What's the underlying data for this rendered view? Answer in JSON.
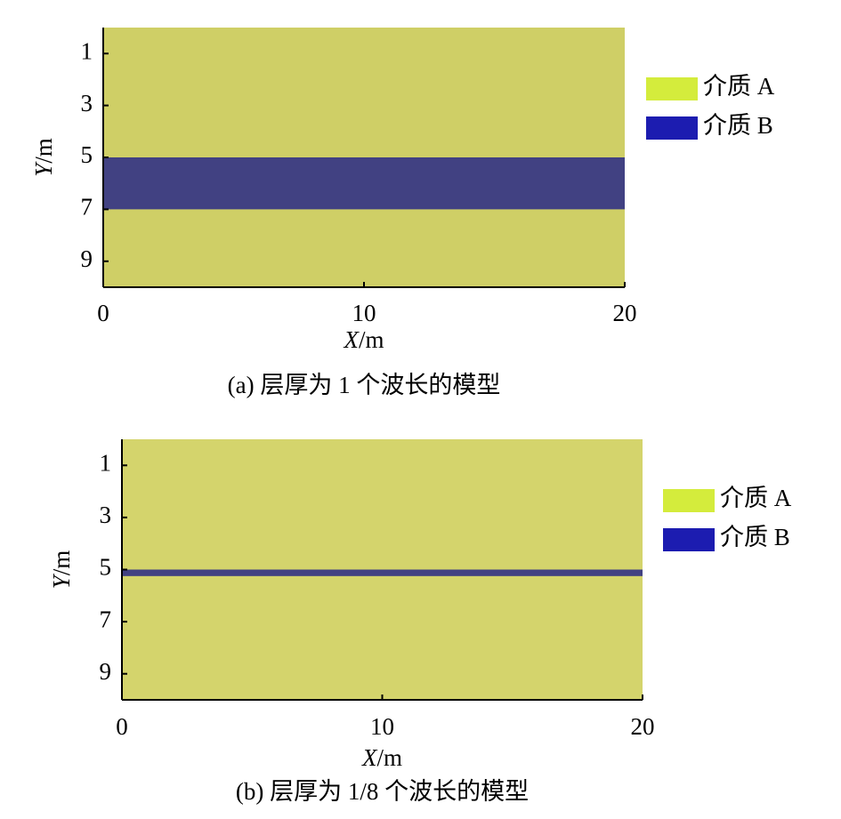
{
  "chart_data": [
    {
      "type": "layers",
      "caption": "(a) 层厚为 1 个波长的模型",
      "xlabel": "X/m",
      "ylabel": "Y/m",
      "xlim": [
        0,
        20
      ],
      "xticks": [
        0,
        10,
        20
      ],
      "ylim": [
        0,
        10
      ],
      "yticks": [
        1,
        3,
        5,
        7,
        9
      ],
      "y_inverted": true,
      "series": [
        {
          "name": "介质 A",
          "color": "#cfcf66",
          "legend_color": "#d4ec3c"
        },
        {
          "name": "介质 B",
          "color": "#414182",
          "legend_color": "#1c1cb0",
          "values": [
            5,
            7
          ]
        }
      ]
    },
    {
      "type": "layers",
      "caption": "(b) 层厚为 1/8 个波长的模型",
      "xlabel": "X/m",
      "ylabel": "Y/m",
      "xlim": [
        0,
        20
      ],
      "xticks": [
        0,
        10,
        20
      ],
      "ylim": [
        0,
        10
      ],
      "yticks": [
        1,
        3,
        5,
        7,
        9
      ],
      "y_inverted": true,
      "series": [
        {
          "name": "介质 A",
          "color": "#d4d46c",
          "legend_color": "#d4ec3c"
        },
        {
          "name": "介质 B",
          "color": "#414182",
          "legend_color": "#1c1cb0",
          "values": [
            5,
            5.25
          ]
        }
      ]
    }
  ]
}
